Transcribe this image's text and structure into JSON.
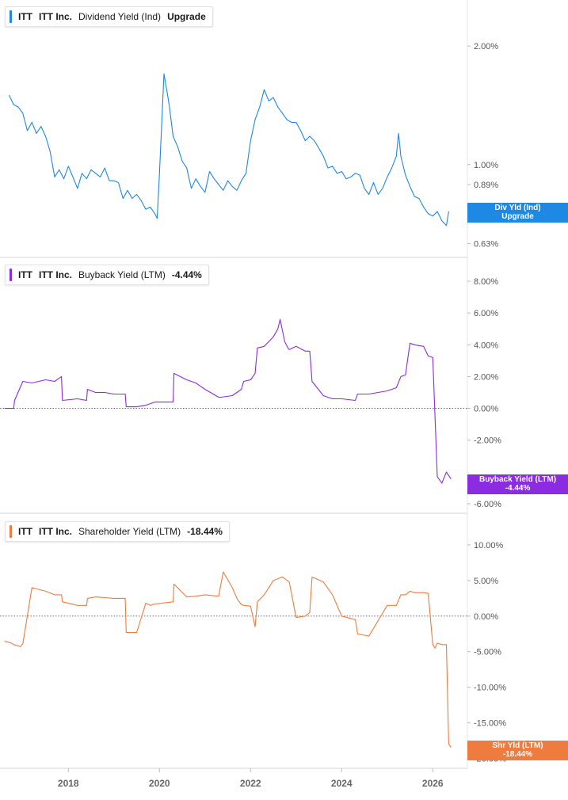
{
  "panels": [
    {
      "ticker": "ITT",
      "company": "ITT Inc.",
      "metric": "Dividend Yield (Ind)",
      "value": "Upgrade",
      "color": "#1e88e5",
      "tag": {
        "line1": "Div Yld (Ind)",
        "line2": "Upgrade"
      }
    },
    {
      "ticker": "ITT",
      "company": "ITT Inc.",
      "metric": "Buyback Yield (LTM)",
      "value": "-4.44%",
      "color": "#8b2be2",
      "tag": {
        "line1": "Buyback Yield (LTM)",
        "line2": "-4.44%"
      }
    },
    {
      "ticker": "ITT",
      "company": "ITT Inc.",
      "metric": "Shareholder Yield (LTM)",
      "value": "-18.44%",
      "color": "#f07b3f",
      "tag": {
        "line1": "Shr Yld (LTM)",
        "line2": "-18.44%"
      }
    }
  ],
  "chart_data": [
    {
      "type": "line",
      "scale": "log",
      "series": [
        {
          "name": "Dividend Yield (Ind)",
          "x": [
            2016.7,
            2016.8,
            2016.9,
            2017.0,
            2017.1,
            2017.2,
            2017.3,
            2017.4,
            2017.5,
            2017.6,
            2017.7,
            2017.8,
            2017.9,
            2018.0,
            2018.1,
            2018.2,
            2018.3,
            2018.4,
            2018.5,
            2018.6,
            2018.7,
            2018.8,
            2018.9,
            2019.0,
            2019.1,
            2019.2,
            2019.3,
            2019.4,
            2019.5,
            2019.6,
            2019.7,
            2019.8,
            2019.9,
            2019.95,
            2020.0,
            2020.1,
            2020.18,
            2020.22,
            2020.3,
            2020.4,
            2020.5,
            2020.6,
            2020.7,
            2020.8,
            2020.9,
            2021.0,
            2021.1,
            2021.2,
            2021.3,
            2021.4,
            2021.5,
            2021.6,
            2021.7,
            2021.8,
            2021.9,
            2022.0,
            2022.1,
            2022.2,
            2022.3,
            2022.4,
            2022.5,
            2022.6,
            2022.7,
            2022.8,
            2022.9,
            2023.0,
            2023.1,
            2023.2,
            2023.3,
            2023.4,
            2023.5,
            2023.6,
            2023.7,
            2023.8,
            2023.9,
            2024.0,
            2024.1,
            2024.2,
            2024.3,
            2024.4,
            2024.5,
            2024.6,
            2024.7,
            2024.8,
            2024.9,
            2025.0,
            2025.1,
            2025.2,
            2025.25,
            2025.3,
            2025.4,
            2025.5,
            2025.6,
            2025.7,
            2025.8,
            2025.9,
            2026.0,
            2026.1,
            2026.2,
            2026.3,
            2026.35
          ],
          "values": [
            1.5,
            1.42,
            1.4,
            1.35,
            1.22,
            1.28,
            1.2,
            1.25,
            1.18,
            1.08,
            0.93,
            0.97,
            0.92,
            0.99,
            0.93,
            0.87,
            0.95,
            0.92,
            0.97,
            0.95,
            0.93,
            0.98,
            0.91,
            0.91,
            0.9,
            0.82,
            0.86,
            0.82,
            0.84,
            0.81,
            0.77,
            0.78,
            0.75,
            0.73,
            0.95,
            1.7,
            1.5,
            1.4,
            1.18,
            1.11,
            1.02,
            0.98,
            0.87,
            0.92,
            0.88,
            0.85,
            0.96,
            0.92,
            0.89,
            0.86,
            0.91,
            0.88,
            0.86,
            0.91,
            0.95,
            1.15,
            1.3,
            1.4,
            1.55,
            1.45,
            1.48,
            1.4,
            1.35,
            1.3,
            1.28,
            1.28,
            1.22,
            1.15,
            1.18,
            1.15,
            1.1,
            1.05,
            0.98,
            0.99,
            0.95,
            0.96,
            0.92,
            0.93,
            0.95,
            0.94,
            0.87,
            0.84,
            0.9,
            0.84,
            0.87,
            0.93,
            0.98,
            1.05,
            1.2,
            1.05,
            0.94,
            0.88,
            0.83,
            0.82,
            0.78,
            0.75,
            0.74,
            0.76,
            0.72,
            0.7,
            0.76
          ]
        }
      ],
      "yticks": [
        "2.00%",
        "1.00%",
        "0.89%",
        "0.63%"
      ],
      "ylim": [
        0.6,
        2.5
      ]
    },
    {
      "type": "line",
      "series": [
        {
          "name": "Buyback Yield (LTM)",
          "x": [
            2016.6,
            2016.8,
            2016.82,
            2017.0,
            2017.2,
            2017.5,
            2017.7,
            2017.85,
            2017.87,
            2018.2,
            2018.4,
            2018.42,
            2018.6,
            2018.8,
            2019.0,
            2019.25,
            2019.27,
            2019.5,
            2019.7,
            2019.8,
            2019.9,
            2020.3,
            2020.32,
            2020.6,
            2020.8,
            2021.0,
            2021.3,
            2021.35,
            2021.6,
            2021.8,
            2021.85,
            2022.0,
            2022.1,
            2022.15,
            2022.3,
            2022.5,
            2022.6,
            2022.65,
            2022.75,
            2022.82,
            2022.85,
            2023.0,
            2023.2,
            2023.3,
            2023.35,
            2023.6,
            2023.8,
            2024.0,
            2024.3,
            2024.35,
            2024.6,
            2025.0,
            2025.2,
            2025.3,
            2025.4,
            2025.5,
            2025.6,
            2025.8,
            2025.9,
            2026.0,
            2026.1,
            2026.15,
            2026.2,
            2026.3,
            2026.4
          ],
          "values": [
            0.0,
            0.0,
            0.5,
            1.7,
            1.6,
            1.8,
            1.7,
            2.0,
            0.5,
            0.6,
            0.5,
            1.2,
            1.0,
            1.0,
            0.9,
            0.9,
            0.1,
            0.1,
            0.2,
            0.3,
            0.4,
            0.4,
            2.2,
            1.8,
            1.6,
            1.2,
            0.7,
            0.7,
            0.8,
            1.2,
            1.7,
            1.8,
            2.2,
            3.8,
            3.9,
            4.5,
            5.0,
            5.6,
            4.2,
            3.8,
            3.7,
            3.9,
            3.6,
            3.6,
            1.7,
            0.8,
            0.6,
            0.6,
            0.5,
            0.9,
            0.9,
            1.1,
            1.3,
            2.0,
            2.1,
            4.1,
            4.0,
            3.9,
            3.3,
            3.2,
            -4.3,
            -4.5,
            -4.7,
            -4.0,
            -4.44
          ]
        }
      ],
      "yticks": [
        "8.00%",
        "6.00%",
        "4.00%",
        "2.00%",
        "0.00%",
        "-2.00%",
        "-6.00%"
      ],
      "ylim": [
        -6.2,
        8.5
      ]
    },
    {
      "type": "line",
      "series": [
        {
          "name": "Shareholder Yield (LTM)",
          "x": [
            2016.6,
            2016.75,
            2016.8,
            2016.95,
            2017.0,
            2017.2,
            2017.5,
            2017.7,
            2017.85,
            2017.87,
            2018.2,
            2018.4,
            2018.42,
            2018.6,
            2018.8,
            2019.0,
            2019.25,
            2019.27,
            2019.5,
            2019.7,
            2019.8,
            2019.9,
            2020.3,
            2020.32,
            2020.6,
            2020.8,
            2021.0,
            2021.3,
            2021.4,
            2021.6,
            2021.7,
            2021.8,
            2021.85,
            2022.0,
            2022.1,
            2022.15,
            2022.3,
            2022.5,
            2022.7,
            2022.85,
            2023.0,
            2023.2,
            2023.3,
            2023.35,
            2023.6,
            2023.8,
            2024.0,
            2024.3,
            2024.35,
            2024.6,
            2025.0,
            2025.2,
            2025.3,
            2025.4,
            2025.5,
            2025.6,
            2025.8,
            2025.9,
            2026.0,
            2026.05,
            2026.1,
            2026.2,
            2026.3,
            2026.35,
            2026.4
          ],
          "values": [
            -3.5,
            -3.8,
            -4.0,
            -4.3,
            -3.9,
            4.0,
            3.5,
            3.0,
            3.0,
            2.0,
            1.5,
            1.5,
            2.5,
            2.7,
            2.6,
            2.5,
            2.5,
            -2.3,
            -2.3,
            1.8,
            1.5,
            1.7,
            2.0,
            4.5,
            2.7,
            2.8,
            3.0,
            2.8,
            6.2,
            4.0,
            2.5,
            1.6,
            1.5,
            1.4,
            -1.5,
            2.0,
            3.0,
            5.0,
            5.5,
            4.8,
            -0.2,
            0.0,
            0.5,
            5.5,
            4.8,
            3.0,
            0.0,
            -0.5,
            -2.5,
            -2.8,
            1.5,
            1.5,
            3.0,
            3.0,
            3.5,
            3.3,
            3.3,
            3.2,
            -4.0,
            -4.5,
            -3.8,
            -4.0,
            -4.0,
            -18.0,
            -18.44
          ]
        }
      ],
      "yticks": [
        "10.00%",
        "5.00%",
        "0.00%",
        "-5.00%",
        "-10.00%",
        "-15.00%",
        "-20.00%"
      ],
      "ylim": [
        -20.5,
        12
      ]
    }
  ],
  "x_axis": {
    "labels": [
      "2018",
      "2020",
      "2022",
      "2024",
      "2026"
    ],
    "values": [
      2018,
      2020,
      2022,
      2024,
      2026
    ],
    "xlim": [
      2016.5,
      2026.5
    ]
  }
}
